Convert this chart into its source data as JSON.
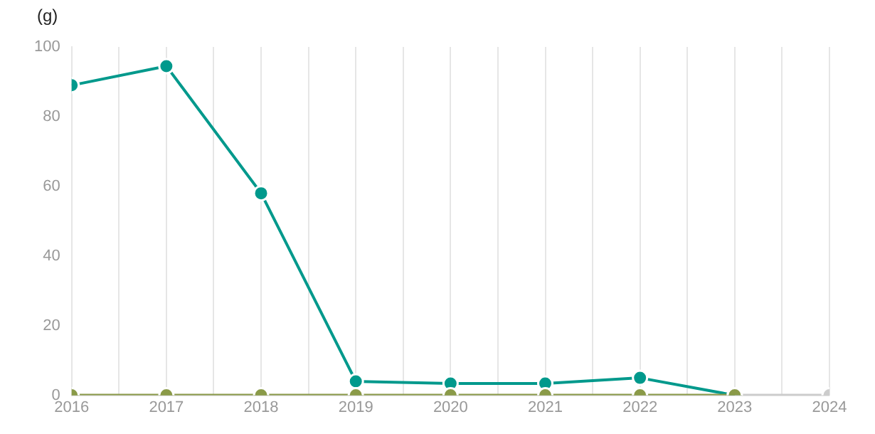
{
  "chart_data": {
    "type": "line",
    "ylabel": "(g)",
    "x": [
      2016,
      2017,
      2018,
      2019,
      2020,
      2021,
      2022,
      2023,
      2024
    ],
    "series": [
      {
        "color": "#8a9a48",
        "values": [
          0,
          0,
          0,
          0,
          0,
          0,
          0,
          0,
          null
        ]
      },
      {
        "color": "#cccccc",
        "values": [
          null,
          null,
          null,
          null,
          null,
          null,
          null,
          0,
          0
        ]
      },
      {
        "color": "#00998c",
        "values": [
          89,
          94.5,
          58,
          4,
          3.4,
          3.4,
          5,
          0,
          null
        ]
      }
    ],
    "xlim": [
      2016,
      2024
    ],
    "xticks": [
      2016,
      {
        "value": 2016.5,
        "label": null
      },
      2017,
      {
        "value": 2017.5,
        "label": null
      },
      2018,
      {
        "value": 2018.5,
        "label": null
      },
      2019,
      {
        "value": 2019.5,
        "label": null
      },
      2020,
      {
        "value": 2020.5,
        "label": null
      },
      2021,
      {
        "value": 2021.5,
        "label": null
      },
      2022,
      {
        "value": 2022.5,
        "label": null
      },
      2023,
      {
        "value": 2023.5,
        "label": null
      },
      2024
    ],
    "ylim": [
      0,
      100
    ],
    "yticks": [
      0,
      20,
      40,
      60,
      80,
      100
    ],
    "grid": "x",
    "marker": "circle",
    "line_style": "solid",
    "legend": false
  }
}
